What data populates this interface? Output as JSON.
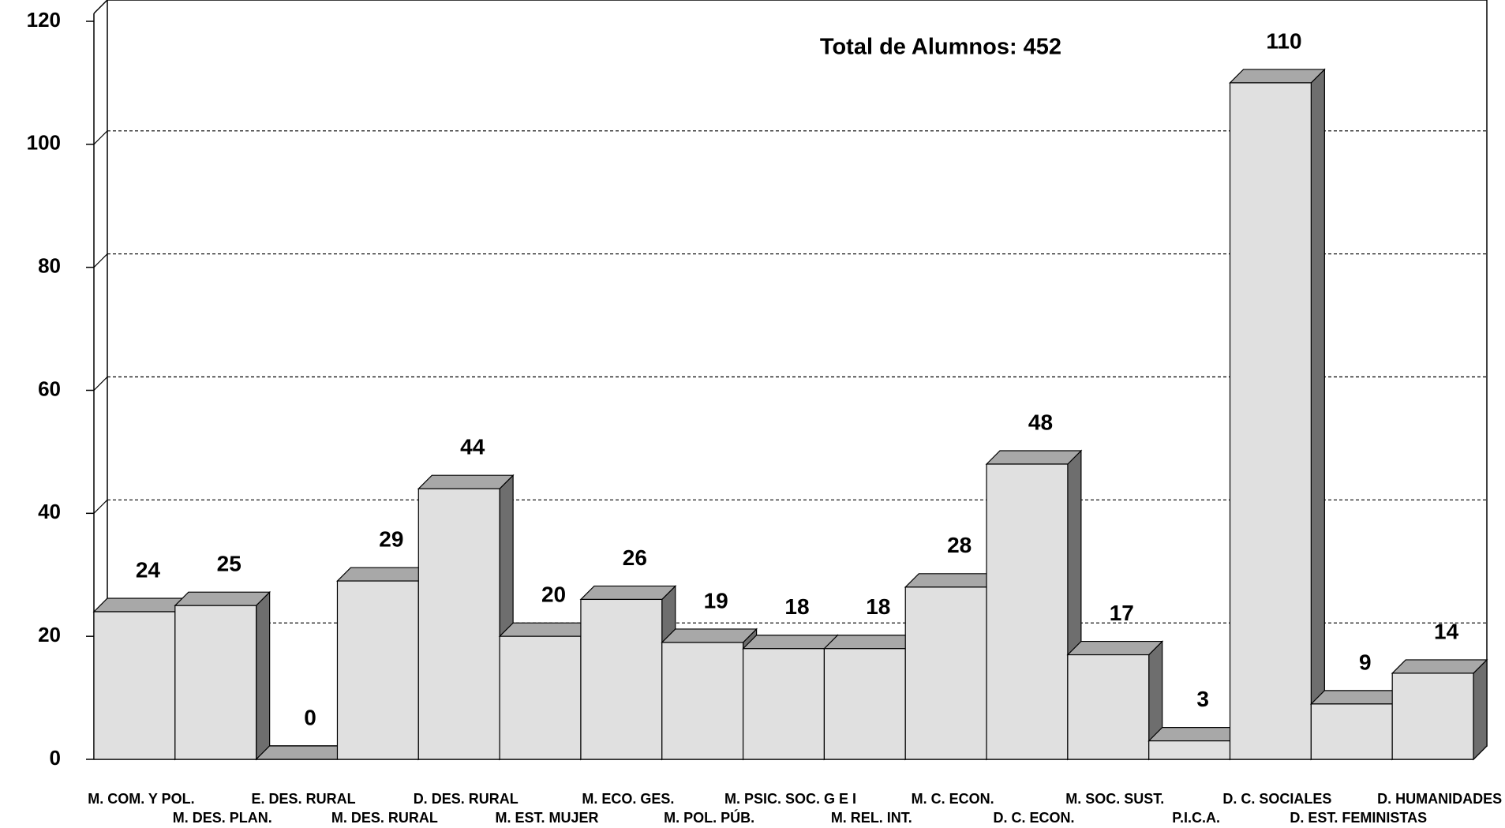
{
  "chart_data": {
    "type": "bar3d",
    "annotation": "Total de Alumnos: 452",
    "categories": [
      "M. COM. Y POL.",
      "M. DES. PLAN.",
      "E. DES. RURAL",
      "M. DES. RURAL",
      "D. DES. RURAL",
      "M. EST. MUJER",
      "M. ECO. GES.",
      "M. POL. PÚB.",
      "M. PSIC. SOC. G E I",
      "M. REL. INT.",
      "M. C. ECON.",
      "D. C. ECON.",
      "M. SOC. SUST.",
      "P.I.C.A.",
      "D. C. SOCIALES",
      "D. EST. FEMINISTAS",
      "D. HUMANIDADES"
    ],
    "values": [
      24,
      25,
      0,
      29,
      44,
      20,
      26,
      19,
      18,
      18,
      28,
      48,
      17,
      3,
      110,
      9,
      14
    ],
    "color": "#e0e0e0",
    "ylim": [
      0,
      120
    ],
    "yticks": [
      0,
      20,
      40,
      60,
      80,
      100,
      120
    ],
    "grid": true
  }
}
